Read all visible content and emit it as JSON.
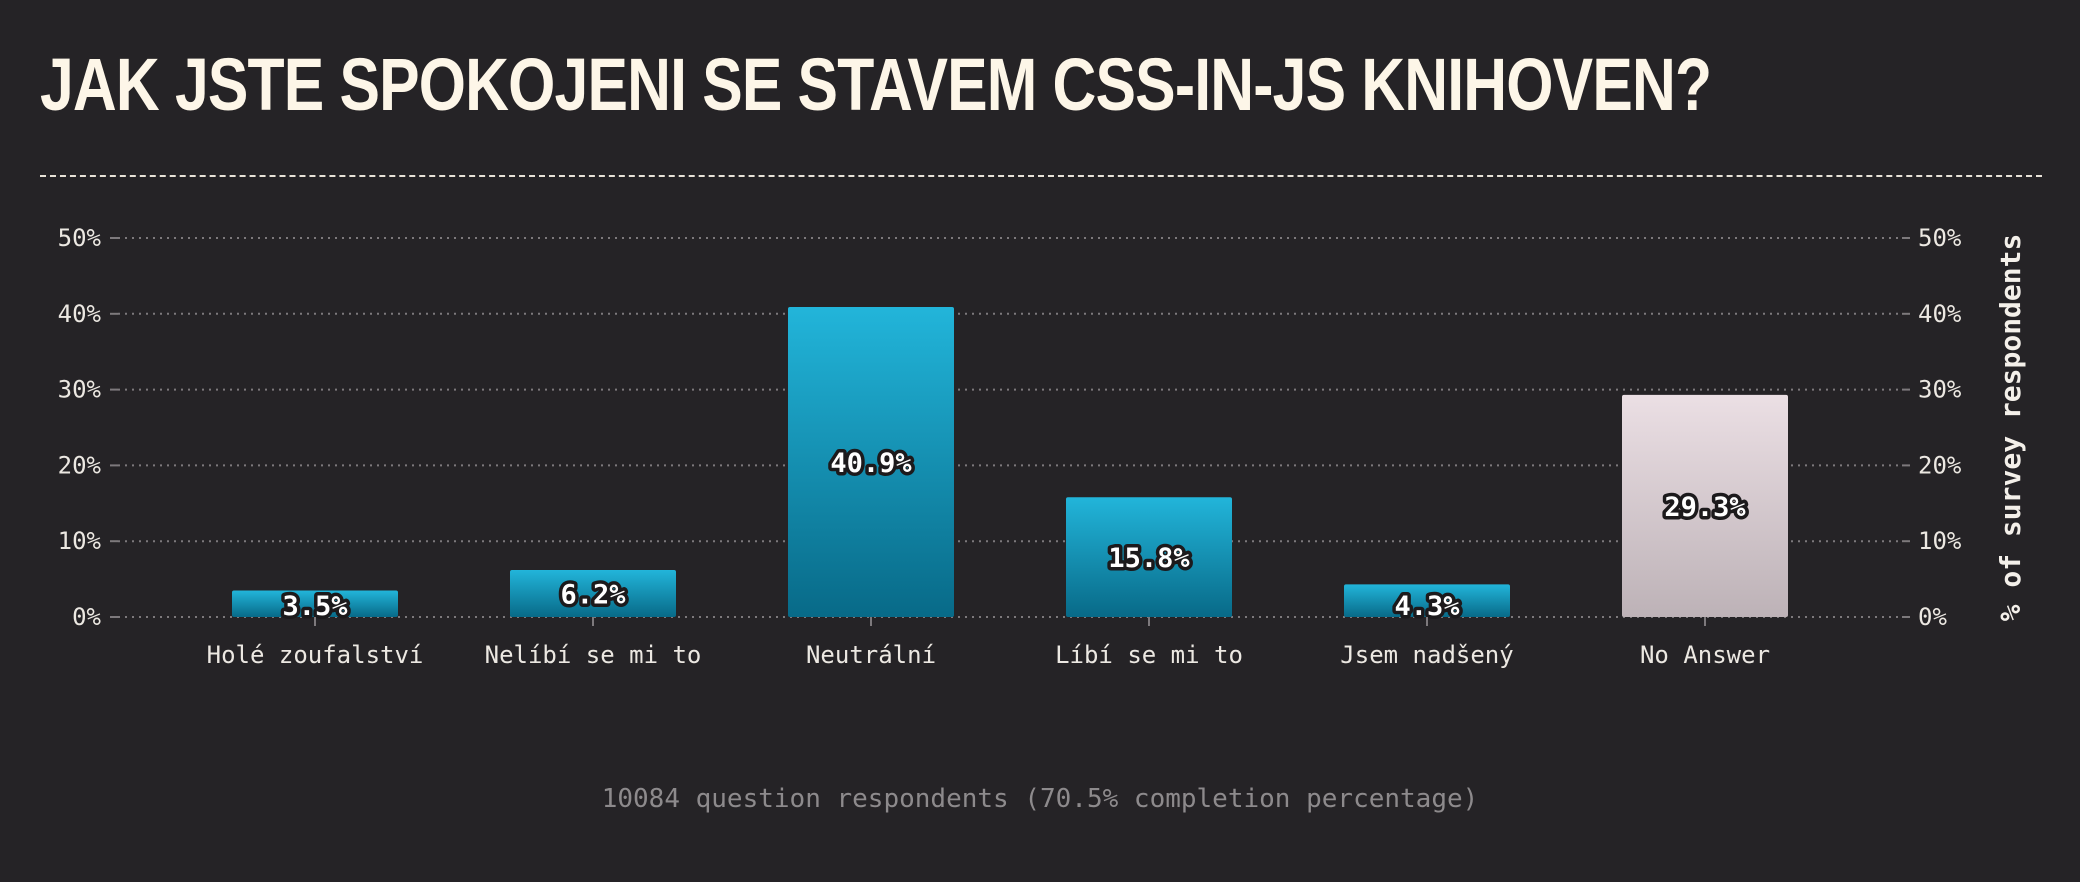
{
  "title": "Jak jste spokojeni se stavem CSS-in-JS knihoven?",
  "footnote": "10084 question respondents (70.5% completion percentage)",
  "colors": {
    "background": "#252326",
    "bar_top": "#22b5da",
    "bar_bottom": "#086a88",
    "no_answer_top": "#ebdfe4",
    "no_answer_bottom": "#bdb2b7",
    "grid": "#7d797c",
    "text": "#ece8e2"
  },
  "chart_data": {
    "type": "bar",
    "title": "Jak jste spokojeni se stavem CSS-in-JS knihoven?",
    "categories": [
      "Holé zoufalství",
      "Nelíbí se mi to",
      "Neutrální",
      "Líbí se mi to",
      "Jsem nadšený",
      "No Answer"
    ],
    "values": [
      3.5,
      6.2,
      40.9,
      15.8,
      4.3,
      29.3
    ],
    "value_labels": [
      "3.5%",
      "6.2%",
      "40.9%",
      "15.8%",
      "4.3%",
      "29.3%"
    ],
    "highlight_category": "No Answer",
    "ylim": [
      0,
      50
    ],
    "y_ticks": [
      0,
      10,
      20,
      30,
      40,
      50
    ],
    "y_tick_labels": [
      "0%",
      "10%",
      "20%",
      "30%",
      "40%",
      "50%"
    ],
    "ylabel_right": "% of survey respondents",
    "xlabel": "",
    "grid": true,
    "legend": "none"
  }
}
